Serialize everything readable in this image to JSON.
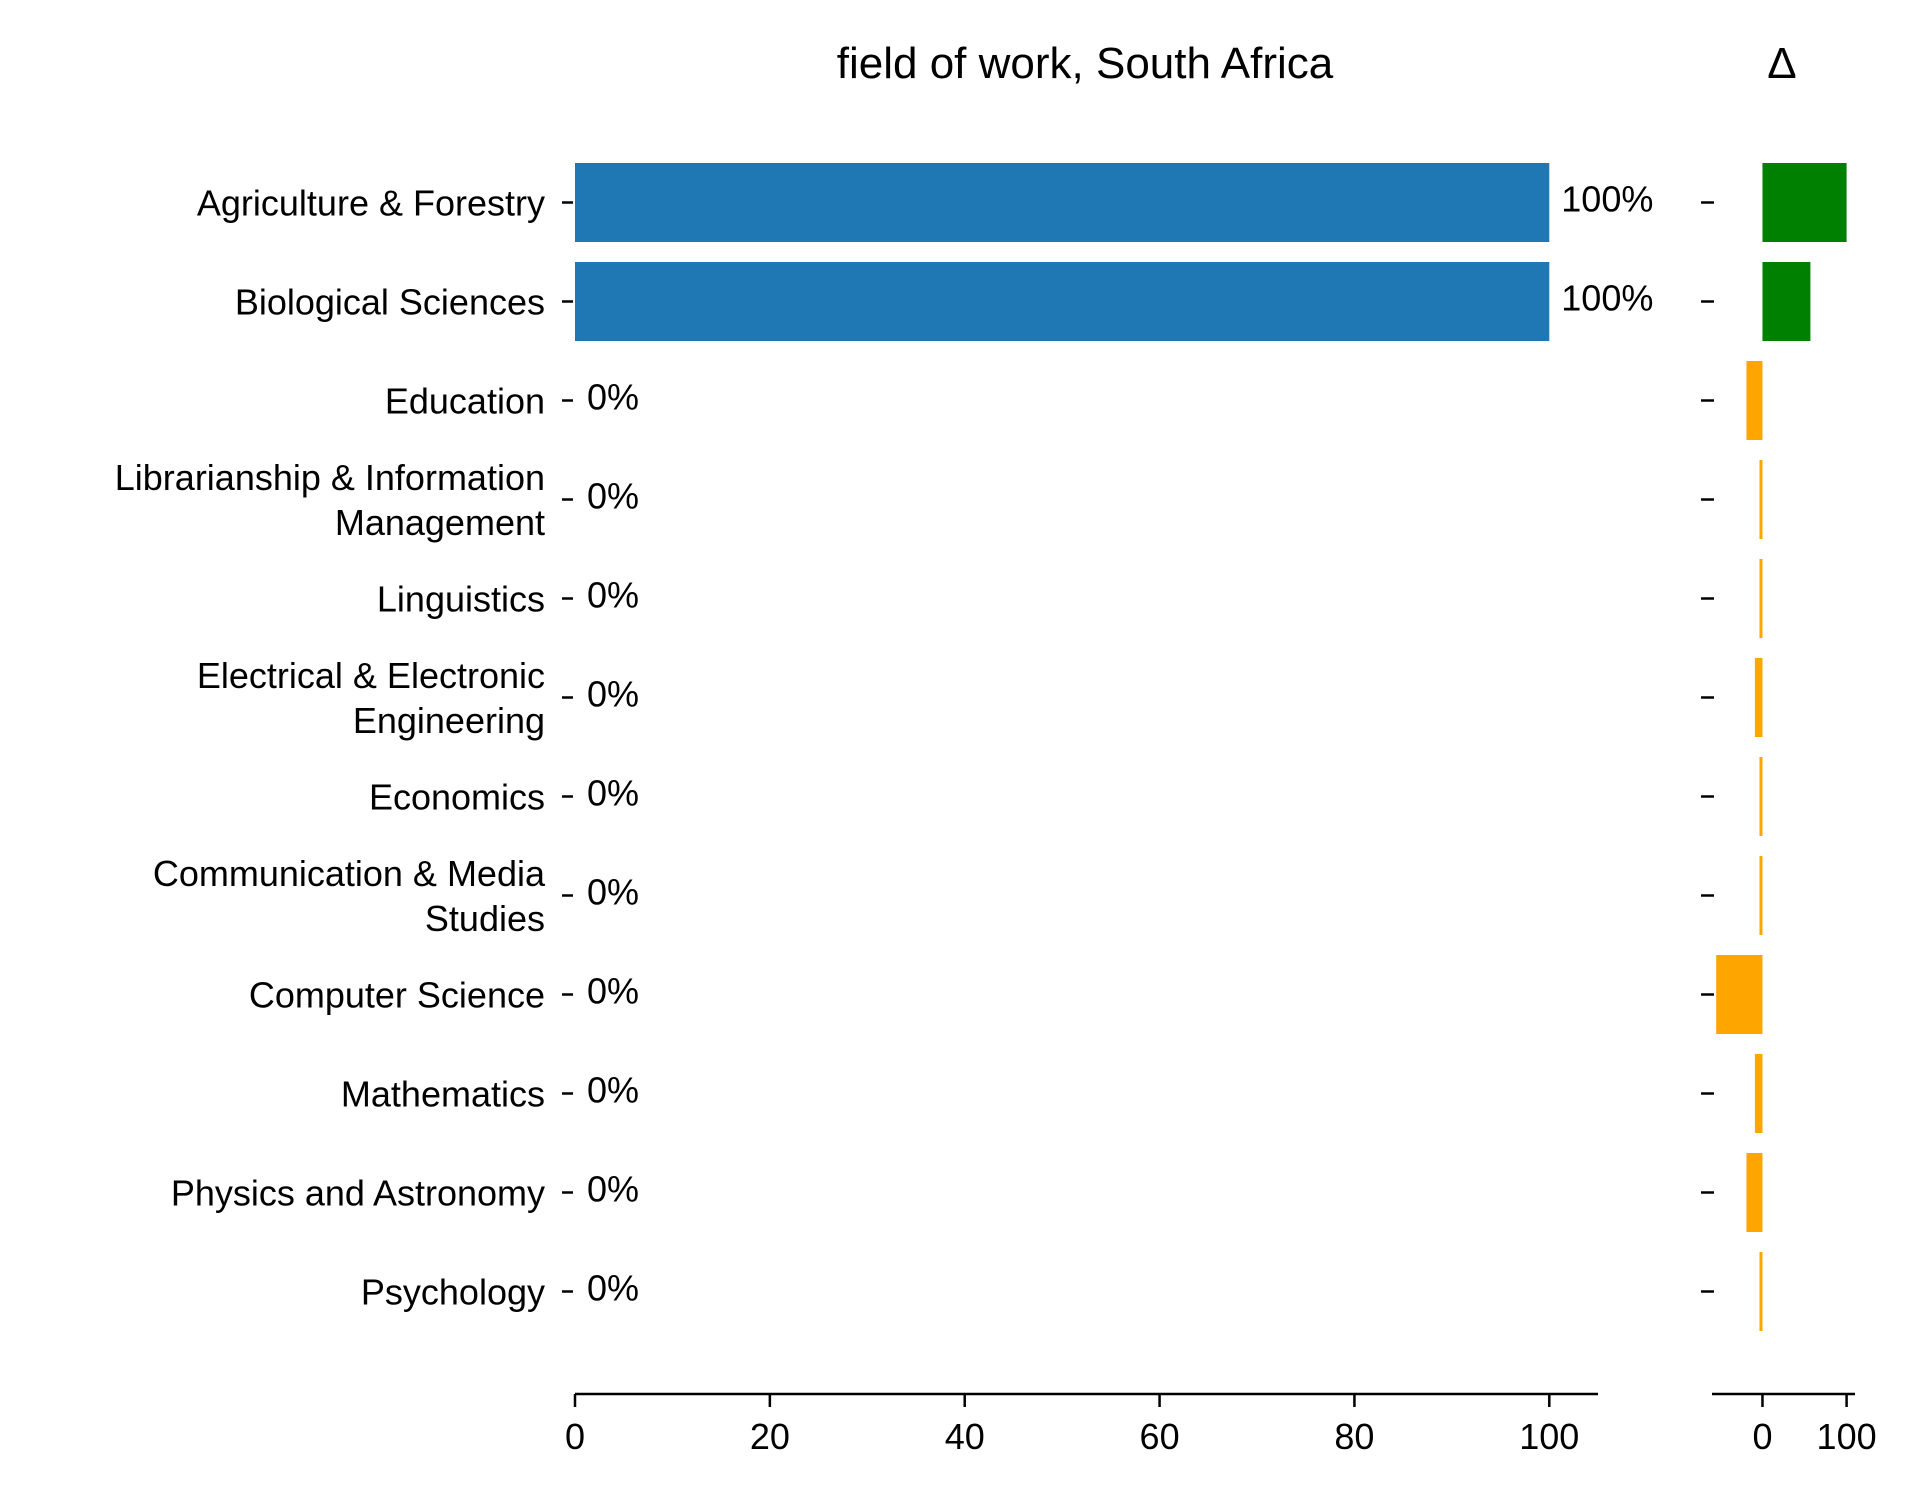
{
  "chart_data": {
    "type": "bar",
    "orientation": "horizontal",
    "title": "field of work, South Africa",
    "delta_title": "Δ",
    "categories": [
      [
        "Agriculture & Forestry"
      ],
      [
        "Biological Sciences"
      ],
      [
        "Education"
      ],
      [
        "Librarianship & Information",
        "Management"
      ],
      [
        "Linguistics"
      ],
      [
        "Electrical & Electronic",
        "Engineering"
      ],
      [
        "Economics"
      ],
      [
        "Communication & Media",
        "Studies"
      ],
      [
        "Computer Science"
      ],
      [
        "Mathematics"
      ],
      [
        "Physics and Astronomy"
      ],
      [
        "Psychology"
      ]
    ],
    "values": [
      100,
      100,
      0,
      0,
      0,
      0,
      0,
      0,
      0,
      0,
      0,
      0
    ],
    "value_labels": [
      "100%",
      "100%",
      "0%",
      "0%",
      "0%",
      "0%",
      "0%",
      "0%",
      "0%",
      "0%",
      "0%",
      "0%"
    ],
    "delta_values": [
      100,
      57,
      -19,
      -2,
      -2,
      -9,
      -2,
      -2,
      -55,
      -9,
      -19,
      -2
    ],
    "xlim": [
      0,
      105
    ],
    "xticks": [
      0,
      20,
      40,
      60,
      80,
      100
    ],
    "xtick_labels": [
      "0",
      "20",
      "40",
      "60",
      "80",
      "100"
    ],
    "delta_xlim": [
      -60,
      110
    ],
    "delta_xticks": [
      0,
      100
    ],
    "delta_xtick_labels": [
      "0",
      "100"
    ],
    "colors": {
      "bar": "#1f77b4",
      "delta_positive": "#008000",
      "delta_negative": "#ffa500",
      "axis": "#000000"
    },
    "grid": false,
    "legend": "none"
  }
}
